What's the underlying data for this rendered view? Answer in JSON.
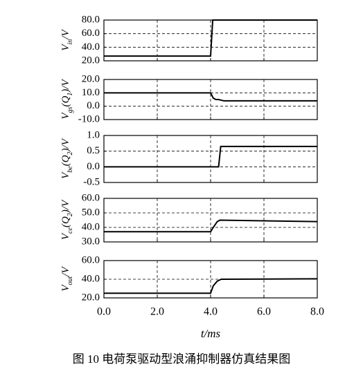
{
  "chart_data": [
    {
      "type": "line",
      "ylabel": [
        {
          "text": "V"
        },
        {
          "text": "in",
          "sub": true
        },
        {
          "text": "/V"
        }
      ],
      "x": [
        0,
        4.0,
        4.08,
        8.0
      ],
      "values": [
        27,
        27,
        80,
        80
      ],
      "color": "#000000",
      "xlim": [
        0,
        8
      ],
      "xticks": [
        0,
        2,
        4,
        6,
        8
      ],
      "ylim": [
        20,
        80
      ],
      "yticks": [
        {
          "value": 20,
          "label": "20.0"
        },
        {
          "value": 40,
          "label": "40.0"
        },
        {
          "value": 60,
          "label": "60.0"
        },
        {
          "value": 80,
          "label": "80.0"
        }
      ],
      "grid": true
    },
    {
      "type": "line",
      "ylabel": [
        {
          "text": "V"
        },
        {
          "text": "gs",
          "sub": true
        },
        {
          "text": "(Q"
        },
        {
          "text": "1",
          "sub": true
        },
        {
          "text": ")/V"
        }
      ],
      "x": [
        0,
        4.0,
        4.1,
        4.2,
        4.3,
        4.5,
        8.0
      ],
      "values": [
        10,
        10,
        6,
        5,
        5,
        4,
        4
      ],
      "color": "#000000",
      "xlim": [
        0,
        8
      ],
      "xticks": [
        0,
        2,
        4,
        6,
        8
      ],
      "ylim": [
        -10,
        20
      ],
      "yticks": [
        {
          "value": -10,
          "label": "-10.0"
        },
        {
          "value": 0,
          "label": "0.0"
        },
        {
          "value": 10,
          "label": "10.0"
        },
        {
          "value": 20,
          "label": "20.0"
        }
      ],
      "grid": true
    },
    {
      "type": "line",
      "ylabel": [
        {
          "text": "V"
        },
        {
          "text": "be",
          "sub": true
        },
        {
          "text": "(Q"
        },
        {
          "text": "2",
          "sub": true
        },
        {
          "text": ")/V"
        }
      ],
      "x": [
        0,
        4.3,
        4.38,
        8.0
      ],
      "values": [
        0,
        0,
        0.65,
        0.65
      ],
      "color": "#000000",
      "xlim": [
        0,
        8
      ],
      "xticks": [
        0,
        2,
        4,
        6,
        8
      ],
      "ylim": [
        -0.5,
        1
      ],
      "yticks": [
        {
          "value": -0.5,
          "label": "-0.5"
        },
        {
          "value": 0,
          "label": "0.0"
        },
        0.5,
        {
          "value": 1,
          "label": "1.0"
        }
      ],
      "grid": true
    },
    {
      "type": "line",
      "ylabel": [
        {
          "text": "V"
        },
        {
          "text": "ce",
          "sub": true
        },
        {
          "text": "(Q"
        },
        {
          "text": "2",
          "sub": true
        },
        {
          "text": ")/V"
        }
      ],
      "x": [
        0,
        4.0,
        4.1,
        4.25,
        4.35,
        6.0,
        8.0
      ],
      "values": [
        37,
        37,
        40,
        44,
        45,
        44.5,
        44
      ],
      "color": "#000000",
      "xlim": [
        0,
        8
      ],
      "xticks": [
        0,
        2,
        4,
        6,
        8
      ],
      "ylim": [
        30,
        60
      ],
      "yticks": [
        {
          "value": 30,
          "label": "30.0"
        },
        {
          "value": 40,
          "label": "40.0"
        },
        {
          "value": 50,
          "label": "50.0"
        },
        {
          "value": 60,
          "label": "60.0"
        }
      ],
      "grid": true
    },
    {
      "type": "line",
      "ylabel": [
        {
          "text": "V"
        },
        {
          "text": "out",
          "sub": true
        },
        {
          "text": "/V"
        }
      ],
      "x": [
        0,
        4.0,
        4.1,
        4.25,
        4.4,
        8.0
      ],
      "values": [
        25,
        25,
        33,
        38,
        40,
        40.5
      ],
      "color": "#000000",
      "xlim": [
        0,
        8
      ],
      "xticks": [
        {
          "value": 0,
          "label": "0.0"
        },
        {
          "value": 2,
          "label": "2.0"
        },
        {
          "value": 4,
          "label": "4.0"
        },
        {
          "value": 6,
          "label": "6.0"
        },
        {
          "value": 8,
          "label": "8.0"
        }
      ],
      "xlabel": "t/ms",
      "ylim": [
        20,
        60
      ],
      "yticks": [
        {
          "value": 20,
          "label": "20.0"
        },
        {
          "value": 40,
          "label": "40.0"
        },
        {
          "value": 60,
          "label": "60.0"
        }
      ],
      "grid": true
    }
  ],
  "caption": "图 10  电荷泵驱动型浪涌抑制器仿真结果图"
}
